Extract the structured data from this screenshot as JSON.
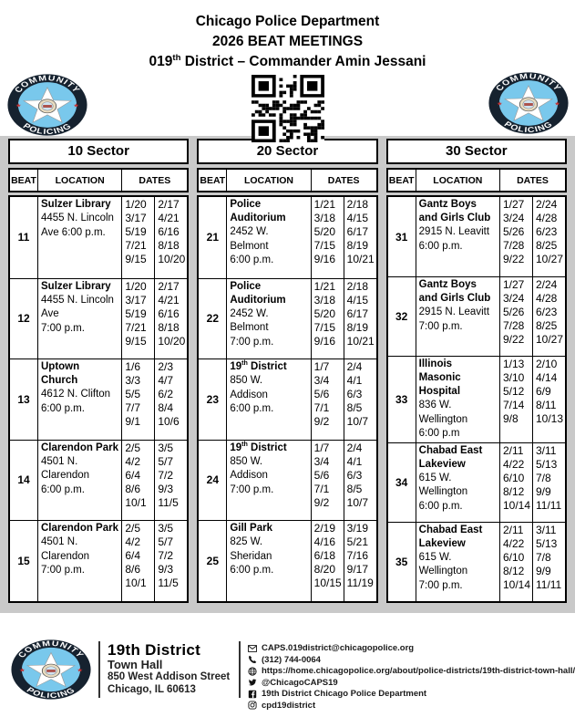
{
  "header": {
    "line1": "Chicago Police Department",
    "line2": "2026 BEAT MEETINGS",
    "line3_parts": [
      {
        "t": "019"
      },
      {
        "t": "th",
        "sup": true
      },
      {
        "t": " District – Commander Amin Jessani"
      }
    ]
  },
  "logo": {
    "top_text": "COMMUNITY",
    "bottom_text": "POLICING",
    "ring_color": "#16222f",
    "inner_color": "#79c8ec",
    "star_color": "#c53030"
  },
  "table_headers": {
    "beat": "BEAT",
    "location": "LOCATION",
    "dates": "DATES"
  },
  "sectors": [
    {
      "name": "10 Sector",
      "rows": [
        {
          "beat": "11",
          "name": "Sulzer Library",
          "address": "4455 N. Lincoln\nAve 6:00 p.m.",
          "dates_col1": [
            "1/20",
            "3/17",
            "5/19",
            "7/21",
            "9/15"
          ],
          "dates_col2": [
            "2/17",
            "4/21",
            "6/16",
            "8/18",
            "10/20"
          ]
        },
        {
          "beat": "12",
          "name": "Sulzer Library",
          "address": "4455 N. Lincoln\nAve\n7:00 p.m.",
          "dates_col1": [
            "1/20",
            "3/17",
            "5/19",
            "7/21",
            "9/15"
          ],
          "dates_col2": [
            "2/17",
            "4/21",
            "6/16",
            "8/18",
            "10/20"
          ]
        },
        {
          "beat": "13",
          "name": "Uptown\nChurch",
          "address": "4612 N. Clifton\n6:00 p.m.",
          "dates_col1": [
            "1/6",
            "3/3",
            "5/5",
            "7/7",
            "9/1"
          ],
          "dates_col2": [
            "2/3",
            "4/7",
            "6/2",
            "8/4",
            "10/6"
          ]
        },
        {
          "beat": "14",
          "name": "Clarendon Park",
          "address": "4501 N.\nClarendon\n6:00 p.m.",
          "dates_col1": [
            "2/5",
            "4/2",
            "6/4",
            "8/6",
            "10/1"
          ],
          "dates_col2": [
            "3/5",
            "5/7",
            "7/2",
            "9/3",
            "11/5"
          ]
        },
        {
          "beat": "15",
          "name": "Clarendon Park",
          "address": "4501 N.\nClarendon\n7:00 p.m.",
          "dates_col1": [
            "2/5",
            "4/2",
            "6/4",
            "8/6",
            "10/1"
          ],
          "dates_col2": [
            "3/5",
            "5/7",
            "7/2",
            "9/3",
            "11/5"
          ]
        }
      ]
    },
    {
      "name": "20 Sector",
      "rows": [
        {
          "beat": "21",
          "name": "Police\nAuditorium",
          "address": "2452 W.\nBelmont\n6:00 p.m.",
          "dates_col1": [
            "1/21",
            "3/18",
            "5/20",
            "7/15",
            "9/16"
          ],
          "dates_col2": [
            "2/18",
            "4/15",
            "6/17",
            "8/19",
            "10/21"
          ]
        },
        {
          "beat": "22",
          "name": "Police\nAuditorium",
          "address": "2452 W.\nBelmont\n7:00 p.m.",
          "dates_col1": [
            "1/21",
            "3/18",
            "5/20",
            "7/15",
            "9/16"
          ],
          "dates_col2": [
            "2/18",
            "4/15",
            "6/17",
            "8/19",
            "10/21"
          ]
        },
        {
          "beat": "23",
          "name": [
            {
              "t": "19"
            },
            {
              "t": "th",
              "sup": true
            },
            {
              "t": " District"
            }
          ],
          "address": "850 W.\nAddison\n6:00 p.m.",
          "dates_col1": [
            "1/7",
            "3/4",
            "5/6",
            "7/1",
            "9/2"
          ],
          "dates_col2": [
            "2/4",
            "4/1",
            "6/3",
            "8/5",
            "10/7"
          ]
        },
        {
          "beat": "24",
          "name": [
            {
              "t": "19"
            },
            {
              "t": "th",
              "sup": true
            },
            {
              "t": " District"
            }
          ],
          "address": "850 W.\nAddison\n7:00 p.m.",
          "dates_col1": [
            "1/7",
            "3/4",
            "5/6",
            "7/1",
            "9/2"
          ],
          "dates_col2": [
            "2/4",
            "4/1",
            "6/3",
            "8/5",
            "10/7"
          ]
        },
        {
          "beat": "25",
          "name": "Gill Park",
          "address": "825 W.\nSheridan\n6:00 p.m.",
          "dates_col1": [
            "2/19",
            "4/16",
            "6/18",
            "8/20",
            "10/15"
          ],
          "dates_col2": [
            "3/19",
            "5/21",
            "7/16",
            "9/17",
            "11/19"
          ]
        }
      ]
    },
    {
      "name": "30 Sector",
      "rows": [
        {
          "beat": "31",
          "name": "Gantz Boys\nand Girls Club",
          "address": "2915 N. Leavitt\n6:00 p.m.",
          "dates_col1": [
            "1/27",
            "3/24",
            "5/26",
            "7/28",
            "9/22"
          ],
          "dates_col2": [
            "2/24",
            "4/28",
            "6/23",
            "8/25",
            "10/27"
          ]
        },
        {
          "beat": "32",
          "name": "Gantz Boys\nand Girls Club",
          "address": "2915 N. Leavitt\n7:00 p.m.",
          "dates_col1": [
            "1/27",
            "3/24",
            "5/26",
            "7/28",
            "9/22"
          ],
          "dates_col2": [
            "2/24",
            "4/28",
            "6/23",
            "8/25",
            "10/27"
          ]
        },
        {
          "beat": "33",
          "name": "Illinois\nMasonic\nHospital",
          "address": "836 W.\nWellington\n6:00 p.m",
          "dates_col1": [
            "1/13",
            "3/10",
            "5/12",
            "7/14",
            "9/8"
          ],
          "dates_col2": [
            "2/10",
            "4/14",
            "6/9",
            "8/11",
            "10/13"
          ]
        },
        {
          "beat": "34",
          "name": "Chabad East\nLakeview",
          "address": "615 W.\nWellington\n6:00 p.m.",
          "dates_col1": [
            "2/11",
            "4/22",
            "6/10",
            "8/12",
            "10/14"
          ],
          "dates_col2": [
            "3/11",
            "5/13",
            "7/8",
            "9/9",
            "11/11"
          ]
        },
        {
          "beat": "35",
          "name": "Chabad East\nLakeview",
          "address": "615 W.\nWellington\n7:00 p.m.",
          "dates_col1": [
            "2/11",
            "4/22",
            "6/10",
            "8/12",
            "10/14"
          ],
          "dates_col2": [
            "3/11",
            "5/13",
            "7/8",
            "9/9",
            "11/11"
          ]
        }
      ]
    }
  ],
  "footer": {
    "district_title": "19th District",
    "hall": "Town Hall",
    "street": "850 West Addison Street",
    "city": "Chicago, IL 60613",
    "contacts": [
      {
        "icon": "email-icon",
        "text": "CAPS.019district@chicagopolice.org"
      },
      {
        "icon": "phone-icon",
        "text": "(312) 744-0064"
      },
      {
        "icon": "globe-icon",
        "text": "https://home.chicagopolice.org/about/police-districts/19th-district-town-hall/"
      },
      {
        "icon": "twitter-icon",
        "text": "@ChicagoCAPS19"
      },
      {
        "icon": "facebook-icon",
        "text": "19th District Chicago Police Department"
      },
      {
        "icon": "instagram-icon",
        "text": "cpd19district"
      }
    ]
  }
}
